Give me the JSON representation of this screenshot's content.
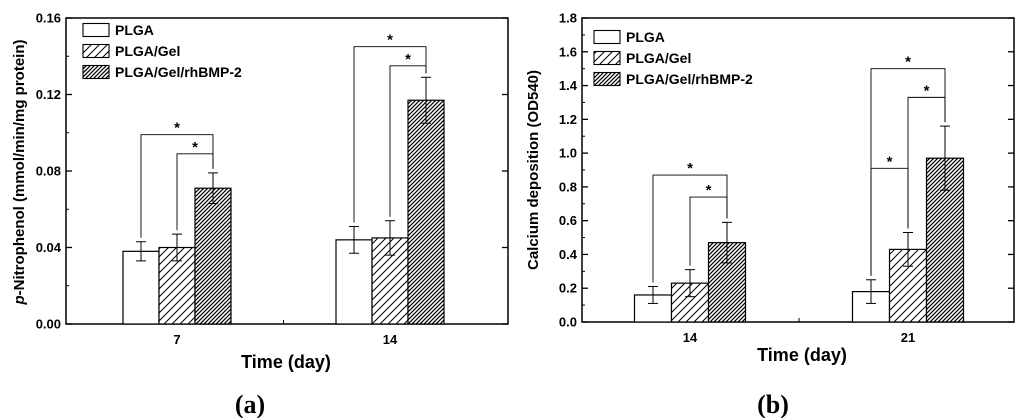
{
  "colors": {
    "ink": "#000000",
    "white": "#ffffff",
    "dense": "#4a4a4a"
  },
  "chart_data": [
    {
      "type": "bar",
      "panel_label": "(a)",
      "categories": [
        "7",
        "14"
      ],
      "series": [
        {
          "name": "PLGA",
          "pattern": "plain",
          "values": [
            0.038,
            0.044
          ],
          "errors": [
            0.005,
            0.007
          ]
        },
        {
          "name": "PLGA/Gel",
          "pattern": "sparse",
          "values": [
            0.04,
            0.045
          ],
          "errors": [
            0.007,
            0.009
          ]
        },
        {
          "name": "PLGA/Gel/rhBMP-2",
          "pattern": "dense",
          "values": [
            0.071,
            0.117
          ],
          "errors": [
            0.008,
            0.012
          ]
        }
      ],
      "xlabel": "Time (day)",
      "ylabel_prefix": "p",
      "ylabel_rest": "-Nitrophenol (mmol/min/mg protein)",
      "ylim": [
        0,
        0.16
      ],
      "yticks": [
        0,
        0.04,
        0.08,
        0.12,
        0.16
      ],
      "ytick_labels": [
        "0.00",
        "0.04",
        "0.08",
        "0.12",
        "0.16"
      ],
      "legend_position": "top-left",
      "significance": [
        {
          "category": 0,
          "from_series": 0,
          "to_series": 2,
          "label": "*",
          "level": 0.099
        },
        {
          "category": 0,
          "from_series": 1,
          "to_series": 2,
          "label": "*",
          "level": 0.089
        },
        {
          "category": 1,
          "from_series": 0,
          "to_series": 2,
          "label": "*",
          "level": 0.145
        },
        {
          "category": 1,
          "from_series": 1,
          "to_series": 2,
          "label": "*",
          "level": 0.135
        }
      ]
    },
    {
      "type": "bar",
      "panel_label": "(b)",
      "categories": [
        "14",
        "21"
      ],
      "series": [
        {
          "name": "PLGA",
          "pattern": "plain",
          "values": [
            0.16,
            0.18
          ],
          "errors": [
            0.05,
            0.07
          ]
        },
        {
          "name": "PLGA/Gel",
          "pattern": "sparse",
          "values": [
            0.23,
            0.43
          ],
          "errors": [
            0.08,
            0.1
          ]
        },
        {
          "name": "PLGA/Gel/rhBMP-2",
          "pattern": "dense",
          "values": [
            0.47,
            0.97
          ],
          "errors": [
            0.12,
            0.19
          ]
        }
      ],
      "xlabel": "Time (day)",
      "ylabel": "Calcium deposition (OD540)",
      "ylim": [
        0,
        1.8
      ],
      "yticks": [
        0,
        0.2,
        0.4,
        0.6,
        0.8,
        1.0,
        1.2,
        1.4,
        1.6,
        1.8
      ],
      "ytick_labels": [
        "0.0",
        "0.2",
        "0.4",
        "0.6",
        "0.8",
        "1.0",
        "1.2",
        "1.4",
        "1.6",
        "1.8"
      ],
      "legend_position": "top-left",
      "significance": [
        {
          "category": 0,
          "from_series": 0,
          "to_series": 2,
          "label": "*",
          "level": 0.87
        },
        {
          "category": 0,
          "from_series": 1,
          "to_series": 2,
          "label": "*",
          "level": 0.74
        },
        {
          "category": 1,
          "from_series": 0,
          "to_series": 2,
          "label": "*",
          "level": 1.5
        },
        {
          "category": 1,
          "from_series": 1,
          "to_series": 2,
          "label": "*",
          "level": 1.33
        },
        {
          "category": 1,
          "from_series": 0,
          "to_series": 1,
          "label": "*",
          "level": 0.91
        }
      ]
    }
  ]
}
